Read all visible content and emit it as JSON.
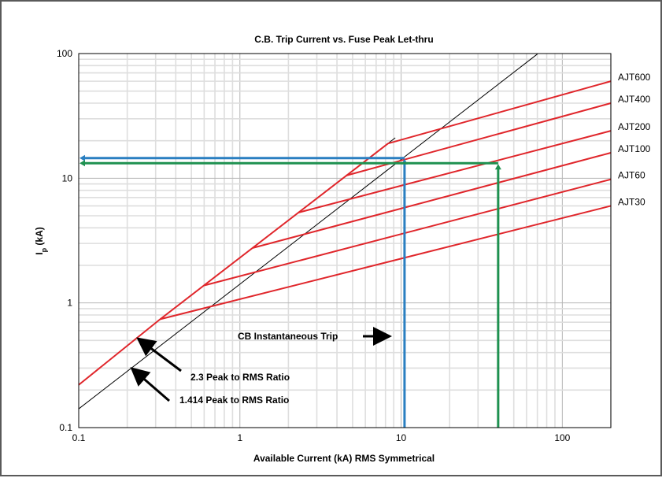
{
  "chart_data": {
    "type": "line",
    "title": "C.B. Trip Current vs. Fuse Peak Let-thru",
    "xlabel": "Available Current (kA) RMS Symmetrical",
    "ylabel_main": "I",
    "ylabel_sub": "p",
    "ylabel_unit": " (kA)",
    "x_scale": "log",
    "y_scale": "log",
    "xlim": [
      0.1,
      200
    ],
    "ylim": [
      0.1,
      100
    ],
    "x_ticks": [
      {
        "value": 0.1,
        "label": "0.1"
      },
      {
        "value": 1,
        "label": "1"
      },
      {
        "value": 10,
        "label": "10"
      },
      {
        "value": 100,
        "label": "100"
      }
    ],
    "y_ticks": [
      {
        "value": 0.1,
        "label": "0.1"
      },
      {
        "value": 1,
        "label": "1"
      },
      {
        "value": 10,
        "label": "10"
      },
      {
        "value": 100,
        "label": "100"
      }
    ],
    "grid": true,
    "colors": {
      "fuse": "#e0262b",
      "ratio": "#000000",
      "cb_blue": "#2a7fc1",
      "cb_green": "#1e9150",
      "grid_major": "#b4b4b4",
      "grid_minor": "#dedede"
    },
    "series": [
      {
        "name": "AJT600",
        "points": [
          [
            8.3,
            19
          ],
          [
            200,
            60
          ]
        ]
      },
      {
        "name": "AJT400",
        "points": [
          [
            4.55,
            10.5
          ],
          [
            200,
            40
          ]
        ]
      },
      {
        "name": "AJT200",
        "points": [
          [
            2.3,
            5.3
          ],
          [
            200,
            24
          ]
        ]
      },
      {
        "name": "AJT100",
        "points": [
          [
            1.2,
            2.76
          ],
          [
            200,
            16
          ]
        ]
      },
      {
        "name": "AJT60",
        "points": [
          [
            0.6,
            1.38
          ],
          [
            200,
            9.8
          ]
        ]
      },
      {
        "name": "AJT30",
        "points": [
          [
            0.32,
            0.74
          ],
          [
            200,
            6
          ]
        ]
      }
    ],
    "envelope": {
      "points": [
        [
          0.1,
          0.22
        ],
        [
          0.32,
          0.74
        ],
        [
          8.3,
          19
        ]
      ]
    },
    "ratio_lines": [
      {
        "ratio": 2.3,
        "points": [
          [
            0.32,
            0.74
          ],
          [
            9.2,
            21.1
          ]
        ]
      },
      {
        "ratio": 1.414,
        "points": [
          [
            0.1,
            0.1414
          ],
          [
            70,
            99
          ]
        ]
      }
    ],
    "cb_trips": [
      {
        "color_key": "cb_blue",
        "x": 10.5,
        "y": 14.5
      },
      {
        "color_key": "cb_green",
        "x": 40,
        "y": 13.2
      }
    ],
    "annotations": [
      {
        "text": "CB Instantaneous Trip",
        "arrow": "right"
      },
      {
        "text": "2.3 Peak to RMS Ratio",
        "arrow": "up-left"
      },
      {
        "text": "1.414 Peak to RMS Ratio",
        "arrow": "up-left"
      }
    ]
  }
}
